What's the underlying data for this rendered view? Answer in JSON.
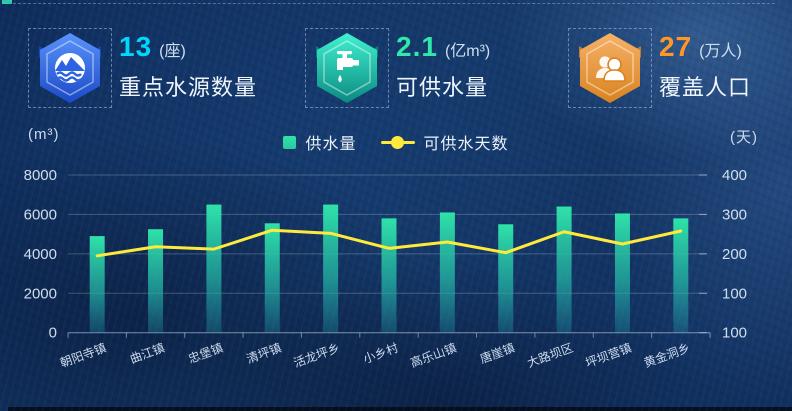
{
  "decor": {
    "top_chip_color": "#2fd0b0"
  },
  "stats": {
    "cards": [
      {
        "value": "13",
        "unit": "(座)",
        "label": "重点水源数量",
        "value_color": "#00d7fc",
        "icon": "water-source-icon",
        "hex_colors": [
          "#5a93fa",
          "#1b49c8"
        ]
      },
      {
        "value": "2.1",
        "unit": "(亿m³)",
        "label": "可供水量",
        "value_color": "#30e8a9",
        "icon": "faucet-icon",
        "hex_colors": [
          "#41f2cf",
          "#0a8a81"
        ]
      },
      {
        "value": "27",
        "unit": "(万人)",
        "label": "覆盖人口",
        "value_color": "#ff9728",
        "icon": "people-group-icon",
        "hex_colors": [
          "#f6b168",
          "#d9831f"
        ]
      }
    ]
  },
  "chart_data": {
    "type": "bar+line",
    "categories": [
      "朝阳寺镇",
      "曲江镇",
      "忠堡镇",
      "清坪镇",
      "活龙坪乡",
      "小乡村",
      "高乐山镇",
      "唐崖镇",
      "大路坝区",
      "坪坝营镇",
      "黄金洞乡"
    ],
    "series": [
      {
        "name": "供水量",
        "type": "bar",
        "y_axis": "left",
        "unit": "m³",
        "color_top": "#2fe3a9",
        "color_mid": "rgba(36,178,165,0.75)",
        "color_bottom": "rgba(35,160,175,0.28)",
        "values": [
          4900,
          5250,
          6500,
          5550,
          6500,
          5800,
          6100,
          5500,
          6400,
          6050,
          5800
        ]
      },
      {
        "name": "可供水天数",
        "type": "line",
        "y_axis": "right",
        "unit": "天",
        "color": "#ffe93c",
        "values": [
          195,
          218,
          212,
          260,
          252,
          214,
          230,
          203,
          256,
          225,
          258
        ]
      }
    ],
    "left_axis": {
      "unit_label": "(m³)",
      "tick_labels": [
        "8000",
        "6000",
        "4000",
        "2000",
        "0"
      ],
      "min": 0,
      "max": 8000
    },
    "right_axis": {
      "unit_label": "(天)",
      "tick_labels": [
        "400",
        "300",
        "200",
        "100",
        "100"
      ]
    },
    "legend": {
      "position": "top-center",
      "items": [
        {
          "label": "供水量",
          "symbol": "square",
          "color": "#2cc9a0"
        },
        {
          "label": "可供水天数",
          "symbol": "line-dot",
          "color": "#ffe93c"
        }
      ]
    },
    "grid": true
  }
}
